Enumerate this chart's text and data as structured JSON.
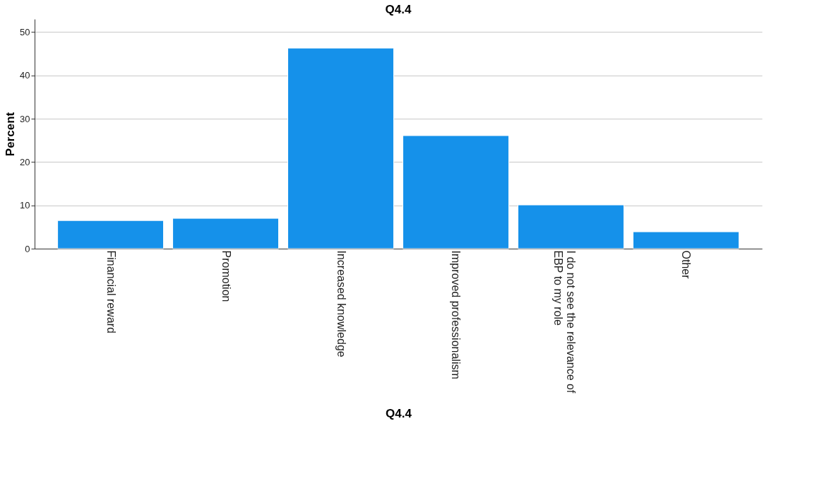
{
  "chart_data": {
    "type": "bar",
    "title": "Q4.4",
    "xlabel": "Q4.4",
    "ylabel": "Percent",
    "categories": [
      "Financial reward",
      "Promotion",
      "Increased knowledge",
      "Improved professionalism",
      "I do not see the relevance of EBP to my role",
      "Other"
    ],
    "values": [
      6.5,
      7.0,
      46.3,
      26.1,
      10.1,
      3.9
    ],
    "color": "#1591ea",
    "ylim": [
      0,
      53
    ],
    "yticks": [
      0,
      10,
      20,
      30,
      40,
      50
    ],
    "grid": "y"
  }
}
